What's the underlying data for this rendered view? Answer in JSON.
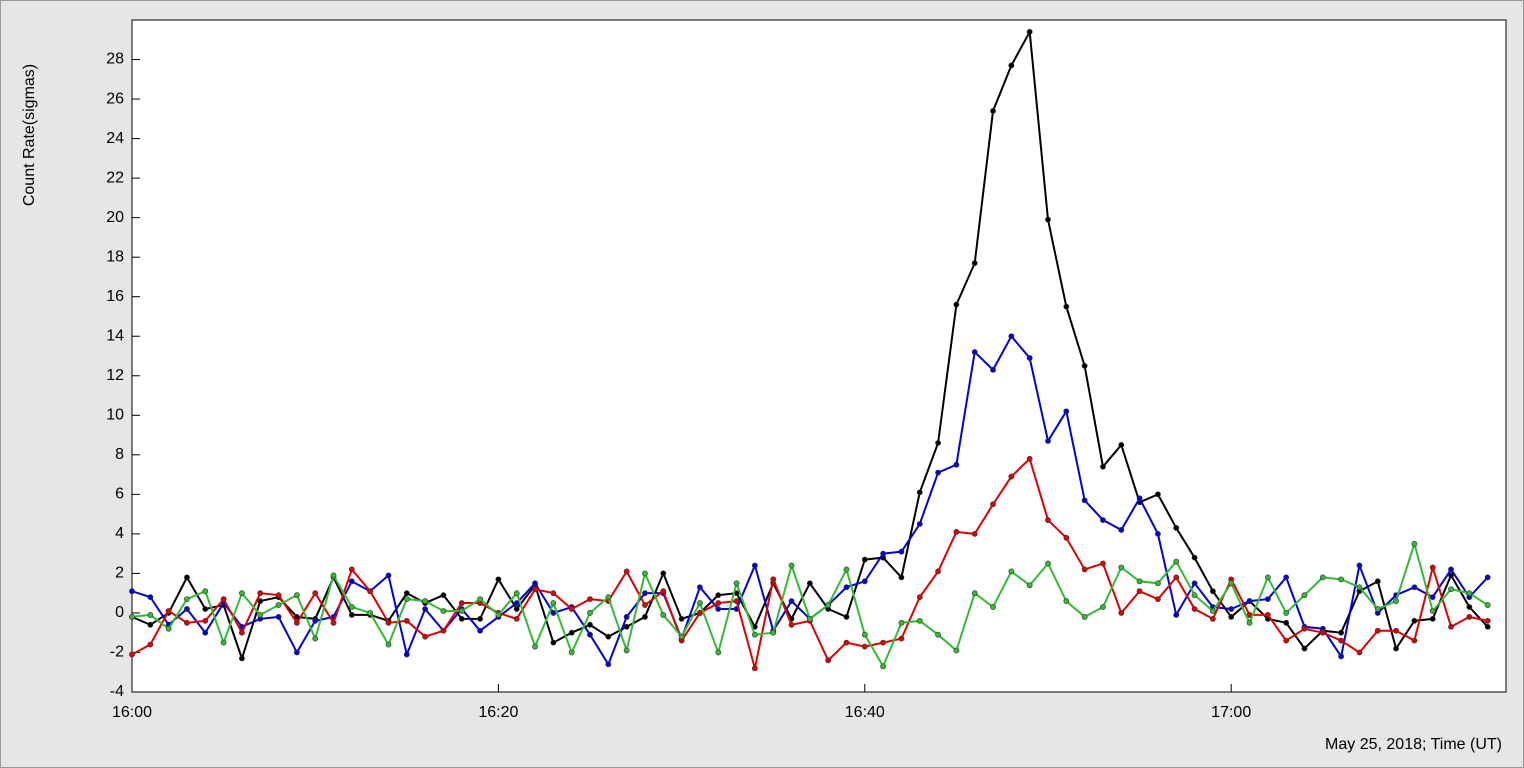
{
  "chart_data": {
    "type": "line",
    "y_label": "Count Rate(sigmas)",
    "x_label": "May 25, 2018; Time (UT)",
    "x": [
      "16:00",
      "16:01",
      "16:02",
      "16:03",
      "16:04",
      "16:05",
      "16:06",
      "16:07",
      "16:08",
      "16:09",
      "16:10",
      "16:11",
      "16:12",
      "16:13",
      "16:14",
      "16:15",
      "16:16",
      "16:17",
      "16:18",
      "16:19",
      "16:20",
      "16:21",
      "16:22",
      "16:23",
      "16:24",
      "16:25",
      "16:26",
      "16:27",
      "16:28",
      "16:29",
      "16:30",
      "16:31",
      "16:32",
      "16:33",
      "16:34",
      "16:35",
      "16:36",
      "16:37",
      "16:38",
      "16:39",
      "16:40",
      "16:41",
      "16:42",
      "16:43",
      "16:44",
      "16:45",
      "16:46",
      "16:47",
      "16:48",
      "16:49",
      "16:50",
      "16:51",
      "16:52",
      "16:53",
      "16:54",
      "16:55",
      "16:56",
      "16:57",
      "16:58",
      "16:59",
      "17:00",
      "17:01",
      "17:02",
      "17:03",
      "17:04",
      "17:05",
      "17:06",
      "17:07",
      "17:08",
      "17:09",
      "17:10",
      "17:11",
      "17:12",
      "17:13",
      "17:14"
    ],
    "series": [
      {
        "color": "#000000",
        "values": [
          -0.2,
          -0.6,
          0,
          1.8,
          0.2,
          0.4,
          -2.3,
          0.6,
          0.8,
          -0.2,
          -0.3,
          1.8,
          -0.1,
          -0.1,
          -0.4,
          1.0,
          0.5,
          0.9,
          -0.3,
          -0.3,
          1.7,
          0.2,
          1.4,
          -1.5,
          -1.0,
          -0.6,
          -1.2,
          -0.7,
          -0.2,
          2.0,
          -0.3,
          0.0,
          0.9,
          1.0,
          -0.7,
          1.5,
          -0.3,
          1.5,
          0.2,
          -0.2,
          2.7,
          2.8,
          1.8,
          6.1,
          8.6,
          15.6,
          17.7,
          25.4,
          27.7,
          29.4,
          19.9,
          15.5,
          12.5,
          7.4,
          8.5,
          5.6,
          6.0,
          4.3,
          2.8,
          1.1,
          -0.2,
          0.6,
          -0.3,
          -0.5,
          -1.8,
          -0.9,
          -1.0,
          1.1,
          1.6,
          -1.8,
          -0.4,
          -0.3,
          1.9,
          0.3,
          -0.7
        ]
      },
      {
        "color": "#0000dd",
        "values": [
          1.1,
          0.8,
          -0.6,
          0.2,
          -1.0,
          0.5,
          -0.7,
          -0.3,
          -0.2,
          -2.0,
          -0.4,
          -0.2,
          1.6,
          1.1,
          1.9,
          -2.1,
          0.2,
          -0.9,
          0.2,
          -0.9,
          -0.2,
          0.5,
          1.5,
          0.0,
          0.3,
          -1.1,
          -2.6,
          -0.2,
          1.0,
          1.0,
          -1.3,
          1.3,
          0.2,
          0.2,
          2.4,
          -0.9,
          0.6,
          -0.3,
          0.4,
          1.3,
          1.6,
          3.0,
          3.1,
          4.5,
          7.1,
          7.5,
          13.2,
          12.3,
          14.0,
          12.9,
          8.7,
          10.2,
          5.7,
          4.7,
          4.2,
          5.8,
          4.0,
          -0.1,
          1.5,
          0.3,
          0.2,
          0.6,
          0.7,
          1.8,
          -0.7,
          -0.8,
          -2.2,
          2.4,
          0.0,
          0.9,
          1.3,
          0.8,
          2.2,
          0.8,
          1.8
        ]
      },
      {
        "color": "#e00000",
        "values": [
          -2.1,
          -1.6,
          0.1,
          -0.5,
          -0.4,
          0.7,
          -1.0,
          1.0,
          0.9,
          -0.5,
          1.0,
          -0.5,
          2.2,
          1.1,
          -0.5,
          -0.4,
          -1.2,
          -0.9,
          0.5,
          0.5,
          0.0,
          -0.3,
          1.2,
          1.0,
          0.2,
          0.7,
          0.6,
          2.1,
          0.4,
          1.1,
          -1.4,
          0.0,
          0.5,
          0.6,
          -2.8,
          1.7,
          -0.6,
          -0.4,
          -2.4,
          -1.5,
          -1.7,
          -1.5,
          -1.3,
          0.8,
          2.1,
          4.1,
          4.0,
          5.5,
          6.9,
          7.8,
          4.7,
          3.8,
          2.2,
          2.5,
          0.0,
          1.1,
          0.7,
          1.8,
          0.2,
          -0.3,
          1.7,
          -0.1,
          -0.1,
          -1.4,
          -0.8,
          -1.0,
          -1.4,
          -2.0,
          -0.9,
          -0.9,
          -1.4,
          2.3,
          -0.7,
          -0.2,
          -0.4
        ]
      },
      {
        "color": "#33bb33",
        "values": [
          -0.2,
          -0.1,
          -0.8,
          0.7,
          1.1,
          -1.5,
          1.0,
          -0.1,
          0.4,
          0.9,
          -1.3,
          1.9,
          0.3,
          0.0,
          -1.6,
          0.7,
          0.6,
          0.1,
          0.1,
          0.7,
          -0.1,
          1.0,
          -1.7,
          0.5,
          -2.0,
          0.0,
          0.8,
          -1.9,
          2.0,
          -0.1,
          -1.2,
          0.5,
          -2.0,
          1.5,
          -1.1,
          -1.0,
          2.4,
          -0.3,
          0.4,
          2.2,
          -1.1,
          -2.7,
          -0.5,
          -0.4,
          -1.1,
          -1.9,
          1.0,
          0.3,
          2.1,
          1.4,
          2.5,
          0.6,
          -0.2,
          0.3,
          2.3,
          1.6,
          1.5,
          2.6,
          0.9,
          0.1,
          1.5,
          -0.5,
          1.8,
          0.0,
          0.9,
          1.8,
          1.7,
          1.3,
          0.2,
          0.6,
          3.5,
          0.1,
          1.2,
          1.0,
          0.4
        ]
      }
    ],
    "xlim": [
      "16:00",
      "17:15"
    ],
    "xticks": [
      "16:00",
      "16:20",
      "16:40",
      "17:00"
    ],
    "ylim": [
      -4,
      30
    ],
    "yticks": [
      -4,
      -2,
      0,
      2,
      4,
      6,
      8,
      10,
      12,
      14,
      16,
      18,
      20,
      22,
      24,
      26,
      28
    ]
  }
}
